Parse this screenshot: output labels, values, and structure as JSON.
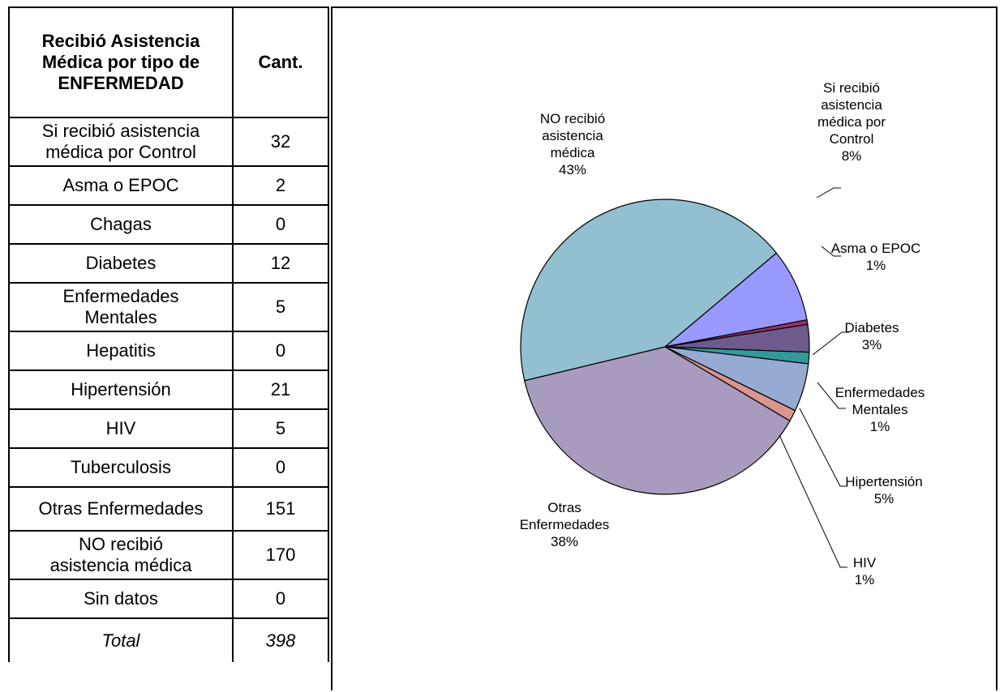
{
  "table": {
    "header": {
      "category_lines": [
        "Recibió Asistencia",
        "Médica por tipo de",
        "ENFERMEDAD"
      ],
      "count": "Cant."
    },
    "rows": [
      {
        "label_lines": [
          "Si recibió asistencia",
          "médica por Control"
        ],
        "count": "32"
      },
      {
        "label_lines": [
          "Asma o EPOC"
        ],
        "count": "2"
      },
      {
        "label_lines": [
          "Chagas"
        ],
        "count": "0"
      },
      {
        "label_lines": [
          "Diabetes"
        ],
        "count": "12"
      },
      {
        "label_lines": [
          "Enfermedades",
          "Mentales"
        ],
        "count": "5"
      },
      {
        "label_lines": [
          "Hepatitis"
        ],
        "count": "0"
      },
      {
        "label_lines": [
          "Hipertensión"
        ],
        "count": "21"
      },
      {
        "label_lines": [
          "HIV"
        ],
        "count": "5"
      },
      {
        "label_lines": [
          "Tuberculosis"
        ],
        "count": "0"
      },
      {
        "label_lines": [
          "Otras Enfermedades"
        ],
        "count": "151"
      },
      {
        "label_lines": [
          "NO recibió",
          "asistencia médica"
        ],
        "count": "170"
      },
      {
        "label_lines": [
          "Sin datos"
        ],
        "count": "0"
      }
    ],
    "total": {
      "label": "Total",
      "count": "398"
    }
  },
  "chart_data": {
    "type": "pie",
    "total": 398,
    "slices": [
      {
        "name": "Si recibió asistencia médica por Control",
        "value": 32,
        "percent": "8%",
        "color": "#9999ff",
        "label_lines": [
          "Si recibió",
          "asistencia",
          "médica por",
          "Control",
          "8%"
        ]
      },
      {
        "name": "Asma o EPOC",
        "value": 2,
        "percent": "1%",
        "color": "#993366",
        "label_lines": [
          "Asma o EPOC",
          "1%"
        ]
      },
      {
        "name": "Chagas",
        "value": 0,
        "percent": "0%",
        "color": "#ffffcc",
        "label_lines": []
      },
      {
        "name": "Diabetes",
        "value": 12,
        "percent": "3%",
        "color": "#6e5a8c",
        "label_lines": [
          "Diabetes",
          "3%"
        ]
      },
      {
        "name": "Enfermedades Mentales",
        "value": 5,
        "percent": "1%",
        "color": "#339999",
        "label_lines": [
          "Enfermedades",
          "Mentales",
          "1%"
        ]
      },
      {
        "name": "Hepatitis",
        "value": 0,
        "percent": "0%",
        "color": "#ccffff",
        "label_lines": []
      },
      {
        "name": "Hipertensión",
        "value": 21,
        "percent": "5%",
        "color": "#96aad2",
        "label_lines": [
          "Hipertensión",
          "5%"
        ]
      },
      {
        "name": "HIV",
        "value": 5,
        "percent": "1%",
        "color": "#d9958e",
        "label_lines": [
          "HIV",
          "1%"
        ]
      },
      {
        "name": "Tuberculosis",
        "value": 0,
        "percent": "0%",
        "color": "#ffcc99",
        "label_lines": []
      },
      {
        "name": "Otras Enfermedades",
        "value": 151,
        "percent": "38%",
        "color": "#a99bbd",
        "label_lines": [
          "Otras",
          "Enfermedades",
          "38%"
        ]
      },
      {
        "name": "NO recibió asistencia médica",
        "value": 170,
        "percent": "43%",
        "color": "#92c0d0",
        "label_lines": [
          "NO recibió",
          "asistencia",
          "médica",
          "43%"
        ]
      },
      {
        "name": "Sin datos",
        "value": 0,
        "percent": "0%",
        "color": "#cccccc",
        "label_lines": []
      }
    ]
  }
}
